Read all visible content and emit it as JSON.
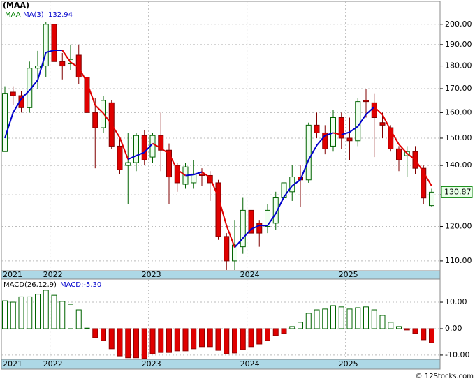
{
  "chart_data": [
    {
      "type": "candlestick",
      "title": "(MAA)",
      "name": "MAA",
      "up_color": "#006400",
      "up_fill": "#f0fff0",
      "down_color": "#e00000",
      "categories": [
        null,
        null,
        null,
        null,
        null,
        null,
        null,
        null,
        null,
        null,
        null,
        null,
        null,
        null,
        null,
        null,
        null,
        null,
        null,
        null,
        null,
        null,
        null,
        null,
        null,
        null,
        null,
        null,
        null,
        null,
        null,
        null,
        null,
        null,
        null,
        null,
        null,
        null,
        null,
        null,
        null,
        null,
        null,
        null,
        null,
        null,
        null,
        null,
        null,
        null,
        null,
        null,
        null
      ],
      "open": [
        145,
        168.5,
        167,
        162,
        179,
        180,
        200,
        182,
        181,
        185,
        175,
        160,
        154,
        164,
        147,
        140,
        141,
        151,
        143,
        151,
        145.5,
        140,
        133.5,
        134,
        137,
        136.5,
        134,
        117,
        110,
        114,
        125,
        121,
        120,
        121,
        129,
        131,
        136,
        135,
        155,
        152,
        147,
        158,
        150,
        149,
        165,
        164,
        156,
        154,
        146,
        143.5,
        145,
        139,
        126.5
      ],
      "high": [
        171,
        171,
        169,
        182,
        187,
        201,
        201,
        186,
        190,
        190,
        177,
        166,
        167,
        165,
        150,
        152,
        152,
        153,
        152,
        160,
        148,
        141,
        141,
        142,
        139,
        138,
        135,
        118,
        122,
        129,
        128,
        122,
        127,
        131,
        136,
        140,
        140,
        156,
        160,
        155,
        161,
        160,
        158,
        166,
        170,
        168,
        160,
        155,
        147,
        147,
        147,
        140,
        132
      ],
      "low": [
        145,
        163,
        160,
        160,
        170,
        175,
        170,
        174,
        178,
        172,
        158,
        139,
        152,
        146,
        137,
        127,
        138,
        140,
        141,
        138,
        127,
        131,
        132,
        132,
        133,
        128,
        116,
        107.5,
        107.5,
        112,
        116,
        114,
        118,
        119,
        126,
        128,
        126,
        134,
        150,
        144,
        145,
        146,
        142,
        147,
        158,
        143,
        150,
        145,
        138,
        136,
        137,
        127,
        126
      ],
      "close": [
        168,
        167,
        162,
        179,
        180,
        200,
        182,
        180,
        183,
        175,
        160,
        154,
        165,
        147,
        138.5,
        141,
        151,
        142,
        151,
        145.5,
        136,
        134,
        139.5,
        137,
        136.5,
        134,
        117,
        110,
        114.5,
        125,
        118,
        118,
        125,
        129,
        134,
        136,
        135,
        155,
        152,
        146,
        158,
        150,
        149,
        164.5,
        164.5,
        158,
        155,
        146,
        142,
        145,
        139,
        128.96,
        130.87
      ],
      "ma": {
        "name": "MA(3)",
        "color": "#0000cc",
        "down_color": "#e00000",
        "values": [
          150,
          160,
          165.7,
          169.3,
          173.7,
          186.3,
          187.3,
          187.3,
          181.7,
          179.3,
          172.7,
          163,
          159.7,
          155.3,
          150.2,
          142.2,
          143.5,
          144.7,
          148,
          146.2,
          144.2,
          138.5,
          136.5,
          136.8,
          137.7,
          135.8,
          129.2,
          120.3,
          113.8,
          116.5,
          119.2,
          120.3,
          120.3,
          124,
          129.3,
          133,
          135,
          142,
          147.3,
          151,
          152,
          151.3,
          152.3,
          154.5,
          159.3,
          162.3,
          159.2,
          153,
          147.7,
          144.3,
          142,
          137.65,
          132.94
        ]
      },
      "log_scale": true,
      "grid": true,
      "ylim": [
        107.3,
        211.9
      ],
      "yticks": [
        {
          "value": 110,
          "label": "110.00"
        },
        {
          "value": 120,
          "label": "120.00"
        },
        {
          "value": 130,
          "label": "130.00"
        },
        {
          "value": 140,
          "label": "140.00"
        },
        {
          "value": 150,
          "label": "150.00"
        },
        {
          "value": 160,
          "label": "160.00"
        },
        {
          "value": 170,
          "label": "170.00"
        },
        {
          "value": 180,
          "label": "180.00"
        },
        {
          "value": 190,
          "label": "190.00"
        },
        {
          "value": 200,
          "label": "200.00"
        }
      ],
      "xticks": [
        {
          "value": -6.5,
          "label": "2021"
        },
        {
          "value": 5.5,
          "label": "2022"
        },
        {
          "value": 17.5,
          "label": "2023"
        },
        {
          "value": 29.5,
          "label": "2024"
        },
        {
          "value": 41.5,
          "label": "2025"
        }
      ]
    },
    {
      "type": "bar",
      "title": "MACD(26,12,9)",
      "legend": "MACD:-5.30",
      "up_color": "#006400",
      "up_fill": "#ffffff",
      "down_color": "#e00000",
      "values": [
        10.5,
        10,
        12,
        12,
        13,
        14.5,
        12.6,
        10.3,
        9.2,
        7.1,
        0.2,
        -3.4,
        -4.5,
        -7.6,
        -10.3,
        -11,
        -11,
        -11.3,
        -9.5,
        -9,
        -9,
        -8.4,
        -8.4,
        -7.6,
        -6.8,
        -6.8,
        -8.2,
        -9.5,
        -9.2,
        -7.9,
        -6.8,
        -5.8,
        -4.5,
        -2.6,
        -1.8,
        0.8,
        2.4,
        5.8,
        7.1,
        7.4,
        8.7,
        8.2,
        7.4,
        7.9,
        8.2,
        7.1,
        5,
        2.4,
        0.8,
        -0.5,
        -1.8,
        -4.2,
        -5.3
      ],
      "grid": true,
      "ylim": [
        -11.6,
        18.7
      ],
      "yticks": [
        {
          "value": -10,
          "label": "-10.00"
        },
        {
          "value": 0,
          "label": "0.00"
        },
        {
          "value": 10,
          "label": "10.00"
        }
      ],
      "xticks": [
        {
          "value": -6.5,
          "label": "2021"
        },
        {
          "value": 5.5,
          "label": "2022"
        },
        {
          "value": 17.5,
          "label": "2023"
        },
        {
          "value": 29.5,
          "label": "2024"
        },
        {
          "value": 41.5,
          "label": "2025"
        }
      ]
    }
  ],
  "footer": "© 12Stocks.com"
}
